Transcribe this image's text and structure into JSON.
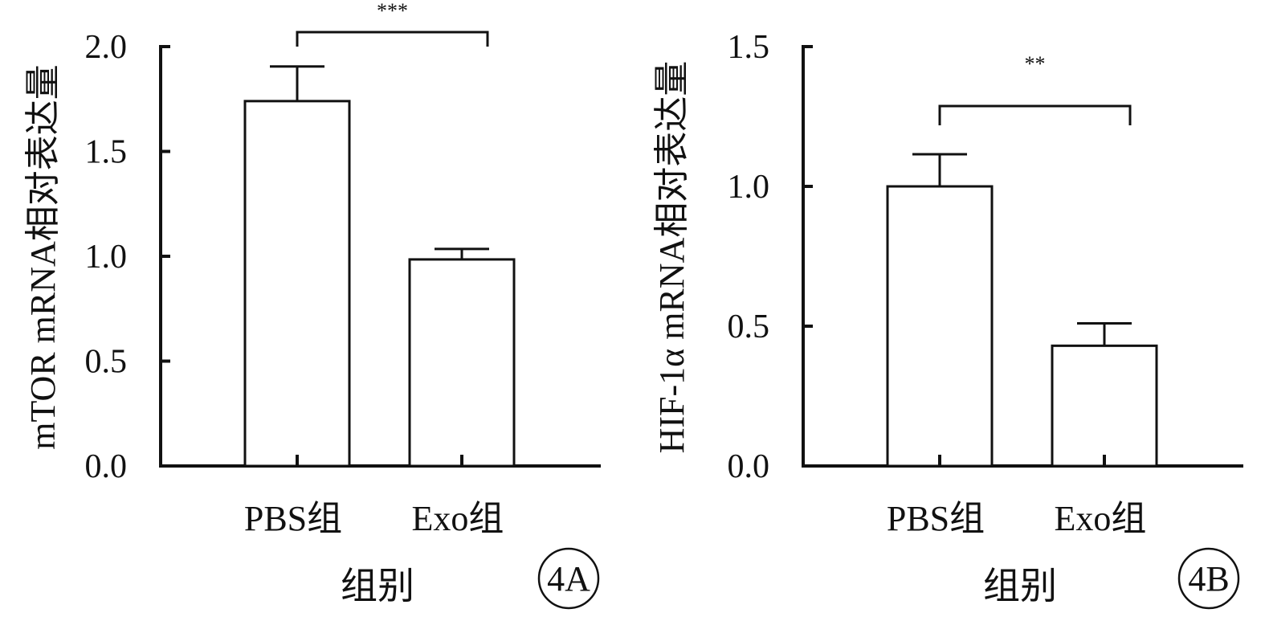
{
  "chart_data": [
    {
      "type": "bar",
      "panel_label": "4A",
      "categories": [
        "PBS组",
        "Exo组"
      ],
      "values": [
        1.74,
        0.985
      ],
      "errors": [
        0.165,
        0.05
      ],
      "xlabel": "组别",
      "ylabel": "mTOR mRNA相对表达量",
      "ylim": [
        0,
        2.0
      ],
      "yticks": [
        "0.0",
        "0.5",
        "1.0",
        "1.5",
        "2.0"
      ],
      "significance": {
        "between": [
          0,
          1
        ],
        "label": "***"
      },
      "grid": false,
      "bar_fill": "#ffffff",
      "line_color": "#111111"
    },
    {
      "type": "bar",
      "panel_label": "4B",
      "categories": [
        "PBS组",
        "Exo组"
      ],
      "values": [
        1.0,
        0.43
      ],
      "errors": [
        0.115,
        0.08
      ],
      "xlabel": "组别",
      "ylabel": "HIF-1α mRNA相对表达量",
      "ylim": [
        0,
        1.5
      ],
      "yticks": [
        "0.0",
        "0.5",
        "1.0",
        "1.5"
      ],
      "significance": {
        "between": [
          0,
          1
        ],
        "label": "**"
      },
      "grid": false,
      "bar_fill": "#ffffff",
      "line_color": "#111111"
    }
  ]
}
